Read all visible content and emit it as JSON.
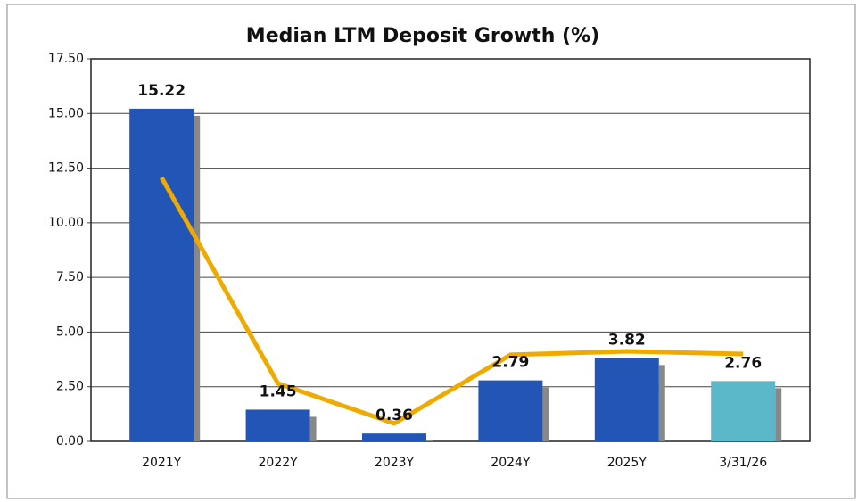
{
  "chart_data": {
    "type": "bar",
    "title": "Median LTM Deposit Growth (%)",
    "categories": [
      "2021Y",
      "2022Y",
      "2023Y",
      "2024Y",
      "2025Y",
      "3/31/26"
    ],
    "series": [
      {
        "type": "bar",
        "colors": [
          "#2255b5",
          "#2255b5",
          "#2255b5",
          "#2255b5",
          "#2255b5",
          "#5bb8c8"
        ],
        "values": [
          15.22,
          1.45,
          0.36,
          2.79,
          3.82,
          2.76
        ]
      },
      {
        "type": "line",
        "color": "#efaa00",
        "values": [
          12.07,
          2.65,
          0.82,
          3.96,
          4.12,
          4.0
        ]
      }
    ],
    "ylim": [
      0,
      17.5
    ],
    "yticks": [
      {
        "value": 0,
        "label": "0.00"
      },
      {
        "value": 2.5,
        "label": "2.50"
      },
      {
        "value": 5,
        "label": "5.00"
      },
      {
        "value": 7.5,
        "label": "7.50"
      },
      {
        "value": 10,
        "label": "10.00"
      },
      {
        "value": 12.5,
        "label": "12.50"
      },
      {
        "value": 15,
        "label": "15.00"
      },
      {
        "value": 17.5,
        "label": "17.50"
      }
    ],
    "grid": true
  }
}
